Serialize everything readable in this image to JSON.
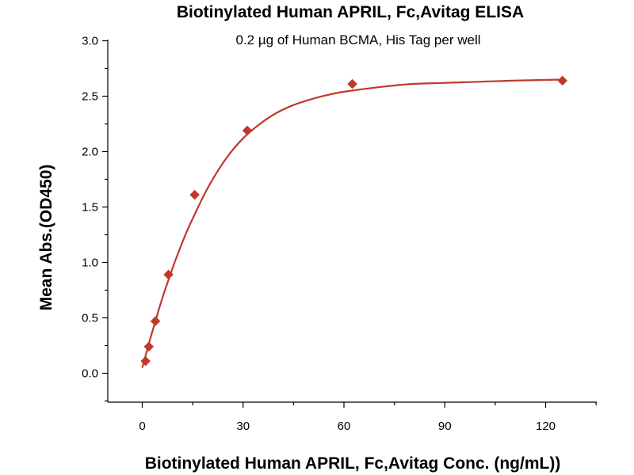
{
  "chart_data": {
    "type": "scatter",
    "title": "Biotinylated Human APRIL, Fc,Avitag ELISA",
    "subtitle": "0.2 µg of Human BCMA, His Tag per well",
    "xlabel": "Biotinylated Human APRIL, Fc,Avitag Conc. (ng/mL))",
    "ylabel": "Mean Abs.(OD450)",
    "xlim": [
      -10,
      135
    ],
    "ylim": [
      -0.25,
      3.0
    ],
    "x_ticks": [
      0,
      30,
      60,
      90,
      120
    ],
    "x_tick_labels": [
      "0",
      "30",
      "60",
      "90",
      "120"
    ],
    "y_ticks": [
      0.0,
      0.5,
      1.0,
      1.5,
      2.0,
      2.5,
      3.0
    ],
    "y_tick_labels": [
      "0.0",
      "0.5",
      "1.0",
      "1.5",
      "2.0",
      "2.5",
      "3.0"
    ],
    "grid": false,
    "colors": {
      "series": "#c0392b"
    },
    "series": [
      {
        "marker": "diamond",
        "x": [
          0.98,
          1.95,
          3.9,
          7.8,
          15.6,
          31.25,
          62.5,
          125
        ],
        "y": [
          0.11,
          0.24,
          0.47,
          0.89,
          1.61,
          2.19,
          2.61,
          2.64
        ]
      }
    ],
    "fit_curve": {
      "x": [
        0,
        2,
        4,
        6,
        8,
        10,
        13,
        16,
        20,
        25,
        30,
        35,
        40,
        45,
        50,
        55,
        60,
        70,
        80,
        90,
        100,
        110,
        125
      ],
      "y": [
        0.05,
        0.27,
        0.48,
        0.68,
        0.86,
        1.03,
        1.26,
        1.46,
        1.7,
        1.94,
        2.12,
        2.25,
        2.35,
        2.42,
        2.47,
        2.51,
        2.54,
        2.58,
        2.61,
        2.62,
        2.63,
        2.64,
        2.65
      ]
    }
  }
}
